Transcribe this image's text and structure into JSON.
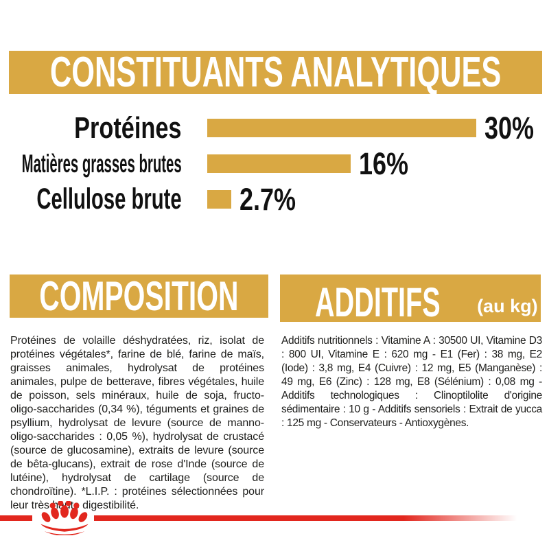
{
  "colors": {
    "gold": "#D9A843",
    "red": "#E2271E",
    "text": "#1D1D1B",
    "heading_text": "#FFFFFF"
  },
  "header": {
    "title": "CONSTITUANTS ANALYTIQUES"
  },
  "chart_data": {
    "type": "bar",
    "orientation": "horizontal",
    "title": "CONSTITUANTS ANALYTIQUES",
    "categories": [
      "Protéines",
      "Matières grasses brutes",
      "Cellulose brute"
    ],
    "values": [
      30,
      16,
      2.7
    ],
    "value_labels": [
      "30%",
      "16%",
      "2.7%"
    ],
    "unit": "%",
    "xlim": [
      0,
      30
    ],
    "bar_color": "#D9A843",
    "grid": false,
    "legend": false
  },
  "sections": {
    "composition": {
      "heading": "COMPOSITION",
      "body": "Protéines de volaille déshydratées, riz, isolat de protéines végétales*, farine de blé, farine de maïs, graisses animales, hydrolysat de protéines animales, pulpe de betterave, fibres végétales, huile de poisson, sels minéraux, huile de soja, fructo-oligo-saccharides (0,34 %), téguments et graines de psyllium, hydrolysat de levure (source de manno-oligo-saccharides : 0,05 %), hydrolysat de crustacé (source de glucosamine), extraits de levure (source de bêta-glucans), extrait de rose d'Inde (source de lutéine), hydrolysat de cartilage (source de chondroïtine). *L.I.P. : protéines sélectionnées pour leur très haute digestibilité."
    },
    "additifs": {
      "heading": "ADDITIFS",
      "heading_suffix": "(au kg)",
      "body": "Additifs nutritionnels : Vitamine A : 30500 UI, Vitamine D3 : 800 UI, Vitamine E : 620 mg - E1 (Fer) : 38 mg, E2 (Iode) : 3,8 mg, E4 (Cuivre) : 12 mg, E5 (Manganèse) : 49 mg, E6 (Zinc) : 128 mg, E8 (Sélénium) : 0,08 mg - Additifs technologiques : Clinoptilolite d'origine sédimentaire : 10 g - Additifs sensoriels : Extrait de yucca : 125 mg - Conservateurs - Antioxygènes."
    }
  },
  "footer": {
    "logo": "royal-canin-crown-logo"
  }
}
